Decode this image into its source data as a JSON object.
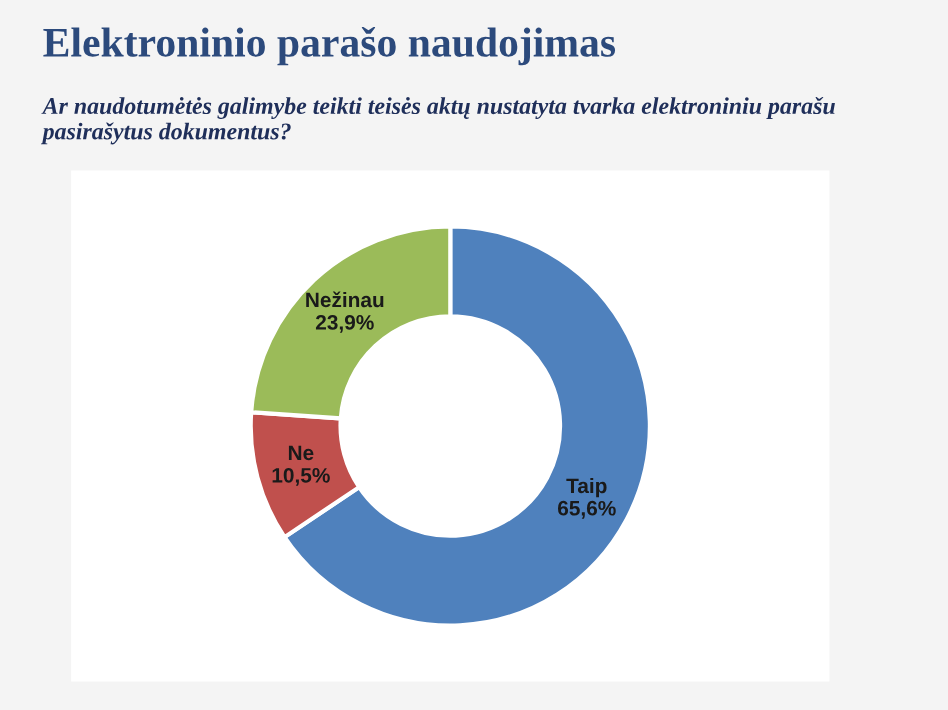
{
  "chart_data": {
    "type": "donut",
    "title": "Elektroninio parašo naudojimas",
    "subtitle": "Ar naudotumėtės galimybe teikti teisės aktų nustatyta tvarka elektroniniu parašu pasirašytus dokumentus?",
    "categories": [
      "Taip",
      "Ne",
      "Nežinau"
    ],
    "values": [
      65.6,
      10.5,
      23.9
    ],
    "value_labels": [
      "65,6%",
      "10,5%",
      "23,9%"
    ],
    "colors": [
      "#4f81bd",
      "#c0504d",
      "#9bbb59"
    ]
  }
}
